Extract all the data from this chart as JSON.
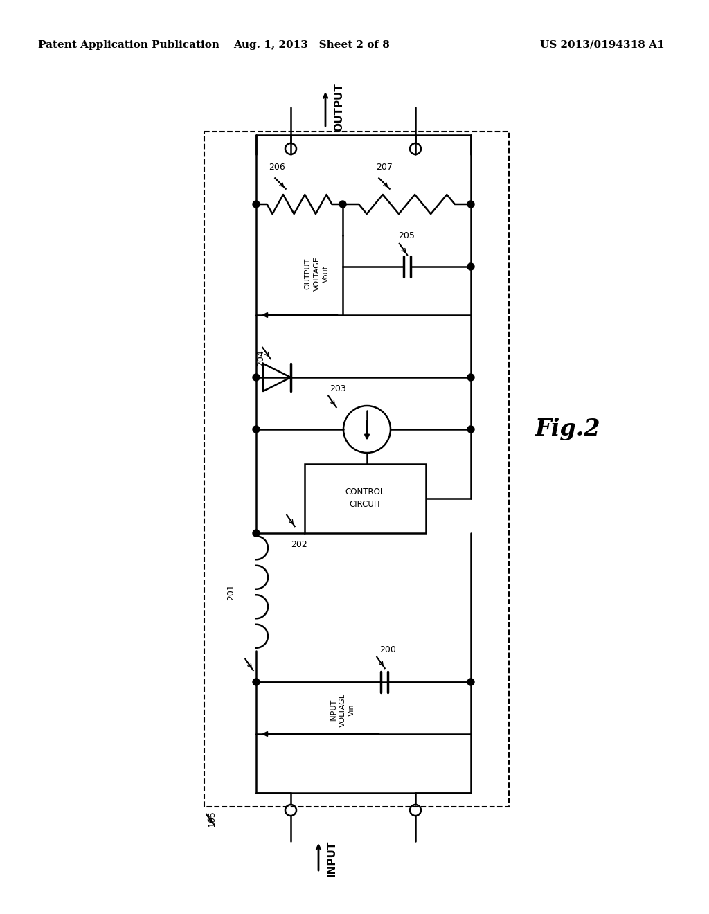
{
  "title_left": "Patent Application Publication",
  "title_center": "Aug. 1, 2013   Sheet 2 of 8",
  "title_right": "US 2013/0194318 A1",
  "fig_label": "Fig.2",
  "bg_color": "#ffffff",
  "line_color": "#000000"
}
